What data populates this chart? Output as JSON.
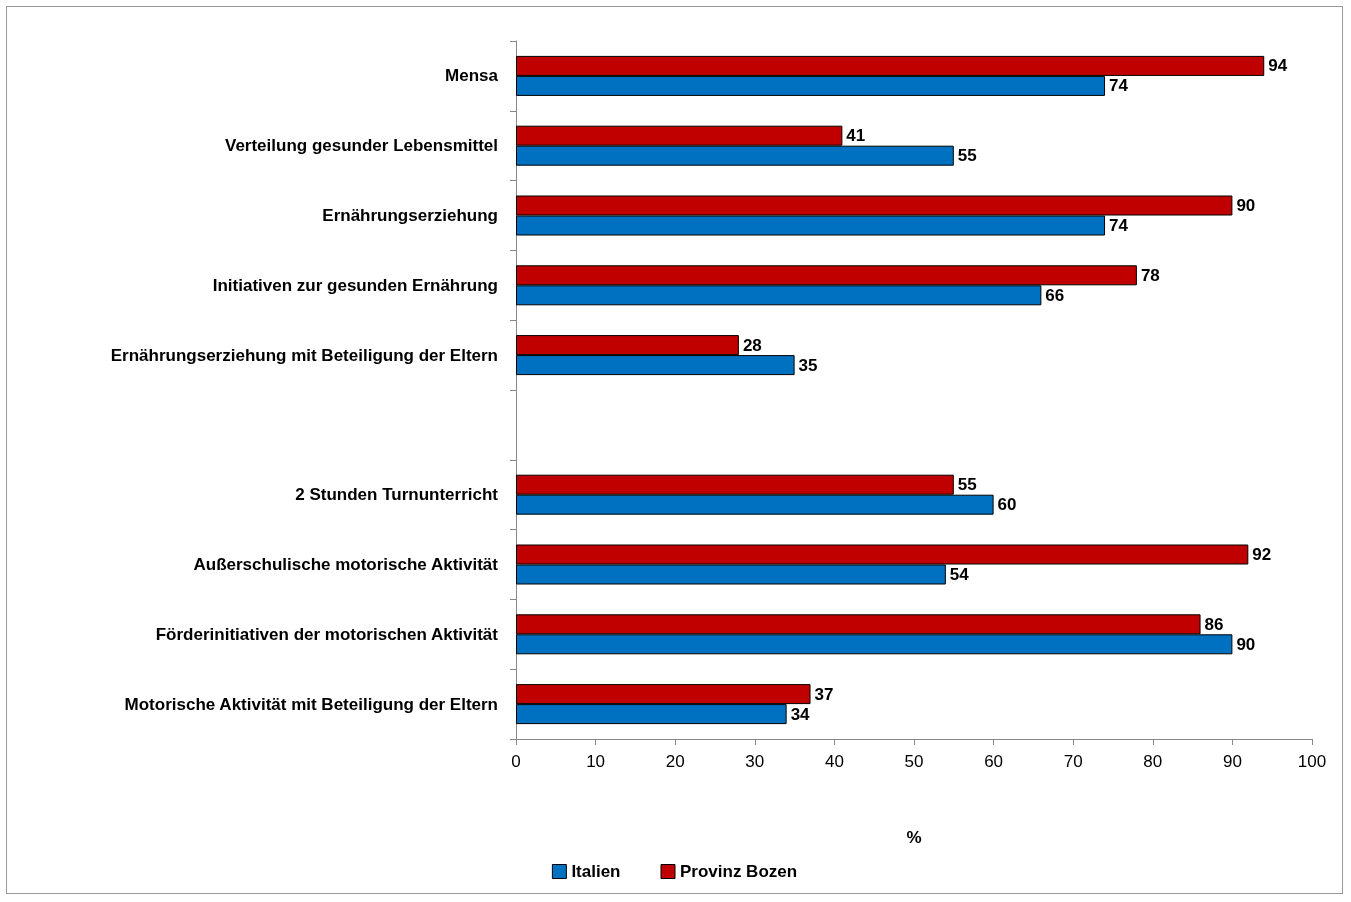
{
  "chart_data": {
    "type": "bar",
    "orientation": "horizontal",
    "categories": [
      "Mensa",
      "Verteilung gesunder Lebensmittel",
      "Ernährungserziehung",
      "Initiativen zur gesunden Ernährung",
      "Ernährungserziehung mit Beteiligung der Eltern",
      null,
      "2 Stunden Turnunterricht",
      "Außerschulische motorische Aktivität",
      "Förderinitiativen der motorischen Aktivität",
      "Motorische Aktivität mit Beteiligung der Eltern"
    ],
    "series": [
      {
        "name": "Italien",
        "color": "#0070c0",
        "values": [
          74,
          55,
          74,
          66,
          35,
          null,
          60,
          54,
          90,
          34
        ]
      },
      {
        "name": "Provinz Bozen",
        "color": "#c00000",
        "values": [
          94,
          41,
          90,
          78,
          28,
          null,
          55,
          92,
          86,
          37
        ]
      }
    ],
    "xlabel": "%",
    "xlim": [
      0,
      100
    ],
    "xticks": [
      0,
      10,
      20,
      30,
      40,
      50,
      60,
      70,
      80,
      90,
      100
    ],
    "data_labels": true,
    "grid": false,
    "legend": "bottom"
  }
}
